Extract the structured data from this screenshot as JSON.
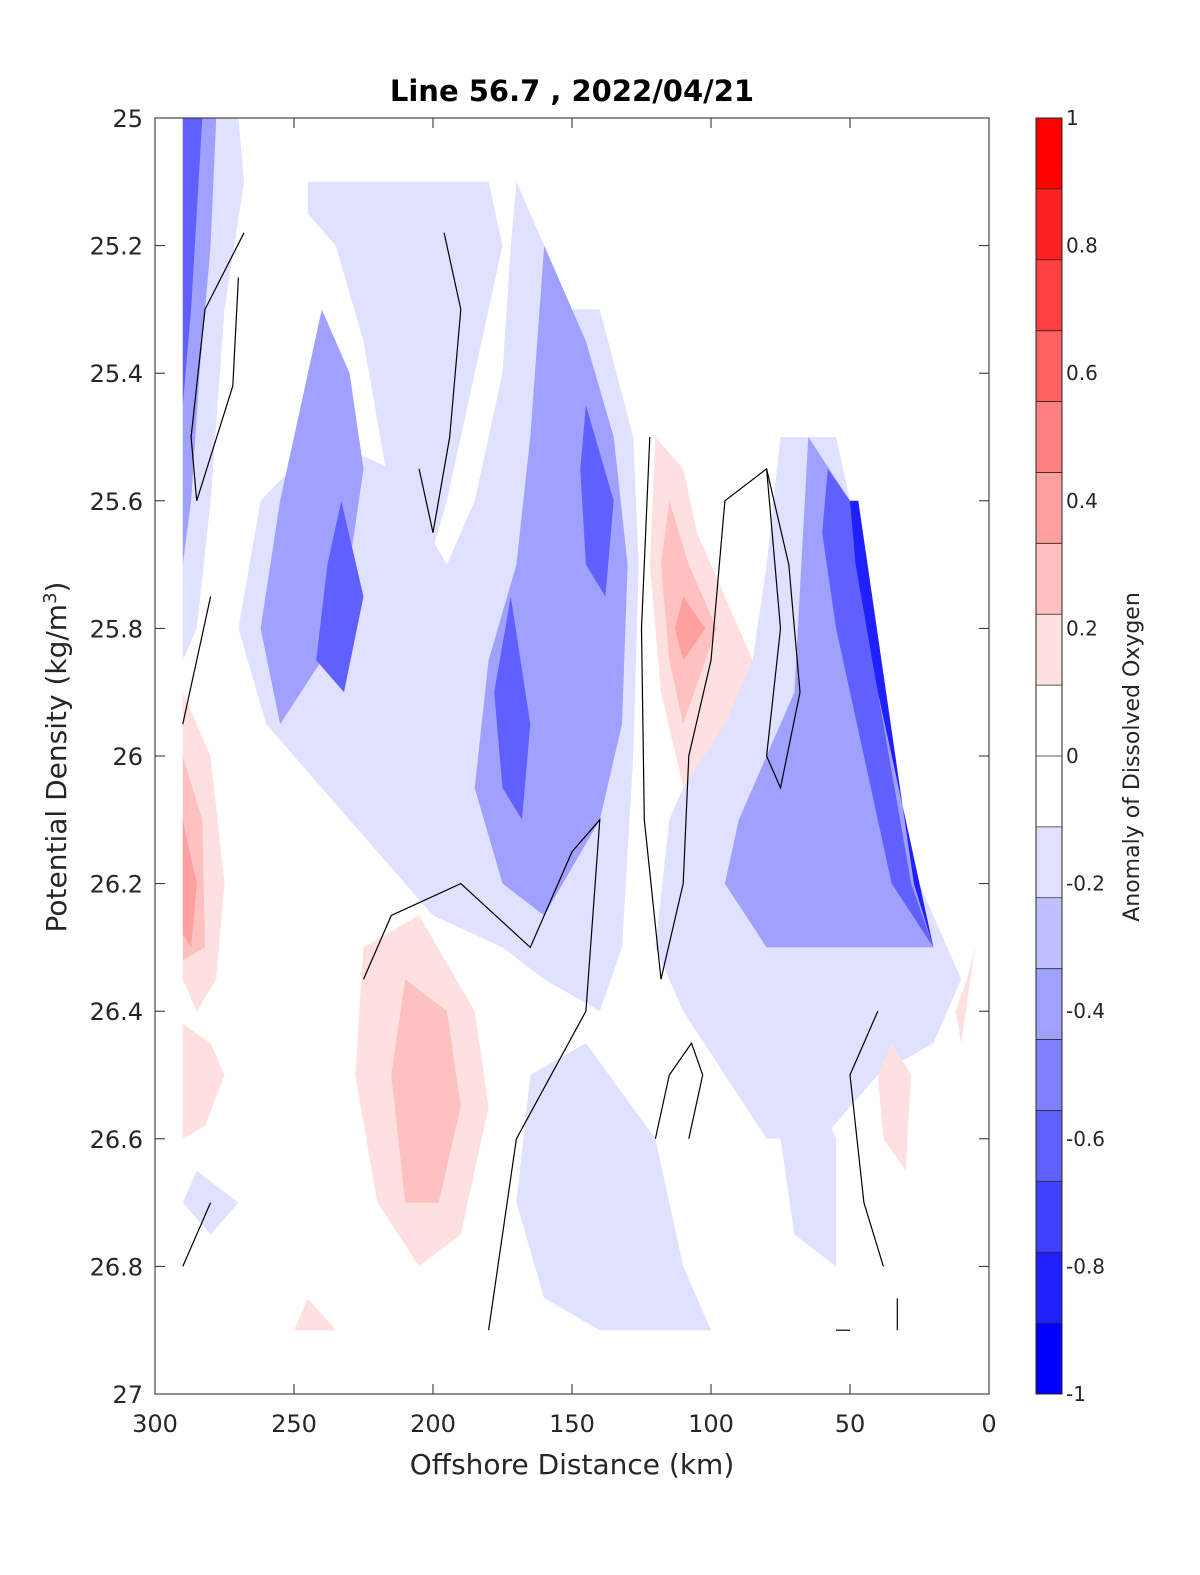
{
  "chart_data": {
    "type": "heatmap",
    "title": "Line 56.7 , 2022/04/21",
    "xlabel": "Offshore Distance (km)",
    "ylabel": "Potential Density (kg/m",
    "ylabel_sup": "3",
    "ylabel_close": ")",
    "xlim": [
      300,
      0
    ],
    "ylim": [
      25,
      27
    ],
    "x_reversed": true,
    "y_reversed": true,
    "xticks": [
      300,
      250,
      200,
      150,
      100,
      50,
      0
    ],
    "yticks": [
      25,
      25.2,
      25.4,
      25.6,
      25.8,
      26,
      26.2,
      26.4,
      26.6,
      26.8,
      27
    ],
    "colorbar": {
      "label": "Anomaly of Dissolved Oxygen",
      "range": [
        -1,
        1
      ],
      "ticks": [
        1,
        0.8,
        0.6,
        0.4,
        0.2,
        0,
        -0.2,
        -0.4,
        -0.6,
        -0.8,
        -1
      ],
      "colors": [
        "#0000ff",
        "#2020ff",
        "#4040ff",
        "#6060ff",
        "#8080ff",
        "#a0a0ff",
        "#c0c0ff",
        "#e0e0ff",
        "#ffffff",
        "#ffffff",
        "#ffe0e0",
        "#ffc0c0",
        "#ffa0a0",
        "#ff8080",
        "#ff6060",
        "#ff4040",
        "#ff2020",
        "#ff0000"
      ]
    },
    "zero_contour": true,
    "regions": [
      {
        "level": -0.2,
        "points": [
          [
            290,
            25
          ],
          [
            270,
            25
          ],
          [
            268,
            25.1
          ],
          [
            275,
            25.3
          ],
          [
            280,
            25.6
          ],
          [
            285,
            25.8
          ],
          [
            290,
            25.85
          ]
        ]
      },
      {
        "level": -0.4,
        "points": [
          [
            290,
            25
          ],
          [
            278,
            25
          ],
          [
            280,
            25.2
          ],
          [
            284,
            25.4
          ],
          [
            287,
            25.6
          ],
          [
            290,
            25.7
          ]
        ]
      },
      {
        "level": -0.6,
        "points": [
          [
            290,
            25
          ],
          [
            283,
            25
          ],
          [
            287,
            25.3
          ],
          [
            290,
            25.45
          ]
        ]
      },
      {
        "level": -0.2,
        "points": [
          [
            245,
            25.1
          ],
          [
            180,
            25.1
          ],
          [
            175,
            25.2
          ],
          [
            185,
            25.4
          ],
          [
            195,
            25.6
          ],
          [
            205,
            25.75
          ],
          [
            215,
            25.6
          ],
          [
            225,
            25.35
          ],
          [
            235,
            25.2
          ],
          [
            245,
            25.15
          ]
        ]
      },
      {
        "level": -0.2,
        "points": [
          [
            170,
            25.1
          ],
          [
            160,
            25.2
          ],
          [
            150,
            25.3
          ],
          [
            140,
            25.3
          ],
          [
            128,
            25.5
          ],
          [
            126,
            25.7
          ],
          [
            128,
            26
          ],
          [
            132,
            26.3
          ],
          [
            140,
            26.4
          ],
          [
            160,
            26.35
          ],
          [
            175,
            26.3
          ],
          [
            200,
            26.25
          ],
          [
            220,
            26.15
          ],
          [
            240,
            26.05
          ],
          [
            260,
            25.95
          ],
          [
            270,
            25.8
          ],
          [
            262,
            25.6
          ],
          [
            240,
            25.5
          ],
          [
            215,
            25.55
          ],
          [
            195,
            25.7
          ],
          [
            185,
            25.6
          ],
          [
            175,
            25.4
          ],
          [
            172,
            25.2
          ]
        ]
      },
      {
        "level": -0.4,
        "points": [
          [
            240,
            25.3
          ],
          [
            230,
            25.4
          ],
          [
            225,
            25.55
          ],
          [
            230,
            25.7
          ],
          [
            240,
            25.85
          ],
          [
            255,
            25.95
          ],
          [
            262,
            25.8
          ],
          [
            255,
            25.6
          ]
        ]
      },
      {
        "level": -0.4,
        "points": [
          [
            160,
            25.2
          ],
          [
            145,
            25.35
          ],
          [
            135,
            25.5
          ],
          [
            130,
            25.7
          ],
          [
            132,
            25.95
          ],
          [
            140,
            26.1
          ],
          [
            160,
            26.25
          ],
          [
            175,
            26.2
          ],
          [
            185,
            26.05
          ],
          [
            180,
            25.85
          ],
          [
            170,
            25.7
          ],
          [
            165,
            25.5
          ]
        ]
      },
      {
        "level": -0.6,
        "points": [
          [
            233,
            25.6
          ],
          [
            225,
            25.75
          ],
          [
            232,
            25.9
          ],
          [
            242,
            25.85
          ],
          [
            238,
            25.7
          ]
        ]
      },
      {
        "level": -0.6,
        "points": [
          [
            145,
            25.45
          ],
          [
            135,
            25.6
          ],
          [
            138,
            25.75
          ],
          [
            145,
            25.7
          ],
          [
            147,
            25.55
          ]
        ]
      },
      {
        "level": -0.6,
        "points": [
          [
            172,
            25.75
          ],
          [
            165,
            25.95
          ],
          [
            168,
            26.1
          ],
          [
            175,
            26.05
          ],
          [
            178,
            25.9
          ]
        ]
      },
      {
        "level": -0.2,
        "points": [
          [
            75,
            25.5
          ],
          [
            55,
            25.5
          ],
          [
            50,
            25.6
          ],
          [
            40,
            25.9
          ],
          [
            25,
            26.2
          ],
          [
            15,
            26.3
          ],
          [
            10,
            26.35
          ],
          [
            20,
            26.45
          ],
          [
            40,
            26.5
          ],
          [
            60,
            26.6
          ],
          [
            80,
            26.6
          ],
          [
            95,
            26.5
          ],
          [
            110,
            26.4
          ],
          [
            120,
            26.3
          ],
          [
            115,
            26.1
          ],
          [
            100,
            25.95
          ],
          [
            85,
            25.85
          ],
          [
            80,
            25.7
          ]
        ]
      },
      {
        "level": -0.4,
        "points": [
          [
            65,
            25.5
          ],
          [
            50,
            25.6
          ],
          [
            40,
            25.9
          ],
          [
            25,
            26.2
          ],
          [
            20,
            26.3
          ],
          [
            40,
            26.3
          ],
          [
            60,
            26.3
          ],
          [
            80,
            26.3
          ],
          [
            95,
            26.2
          ],
          [
            90,
            26.1
          ],
          [
            70,
            25.9
          ]
        ]
      },
      {
        "level": -0.6,
        "points": [
          [
            58,
            25.55
          ],
          [
            50,
            25.6
          ],
          [
            40,
            25.9
          ],
          [
            28,
            26.2
          ],
          [
            20,
            26.3
          ],
          [
            35,
            26.2
          ],
          [
            45,
            26.0
          ],
          [
            55,
            25.8
          ],
          [
            60,
            25.65
          ]
        ]
      },
      {
        "level": -0.8,
        "points": [
          [
            50,
            25.6
          ],
          [
            47,
            25.6
          ],
          [
            37,
            25.9
          ],
          [
            27,
            26.2
          ],
          [
            20,
            26.3
          ],
          [
            30,
            26.1
          ],
          [
            40,
            25.9
          ],
          [
            48,
            25.7
          ]
        ]
      },
      {
        "level": -0.2,
        "points": [
          [
            165,
            26.5
          ],
          [
            145,
            26.45
          ],
          [
            120,
            26.6
          ],
          [
            110,
            26.8
          ],
          [
            100,
            26.9
          ],
          [
            140,
            26.9
          ],
          [
            160,
            26.85
          ],
          [
            170,
            26.7
          ]
        ]
      },
      {
        "level": -0.2,
        "points": [
          [
            285,
            26.65
          ],
          [
            270,
            26.7
          ],
          [
            280,
            26.75
          ],
          [
            290,
            26.7
          ]
        ]
      },
      {
        "level": -0.2,
        "points": [
          [
            65,
            26.5
          ],
          [
            55,
            26.6
          ],
          [
            55,
            26.8
          ],
          [
            70,
            26.75
          ],
          [
            75,
            26.6
          ]
        ]
      },
      {
        "level": 0.2,
        "points": [
          [
            290,
            25.9
          ],
          [
            280,
            26
          ],
          [
            275,
            26.2
          ],
          [
            278,
            26.35
          ],
          [
            285,
            26.4
          ],
          [
            290,
            26.35
          ]
        ]
      },
      {
        "level": 0.3,
        "points": [
          [
            290,
            26
          ],
          [
            283,
            26.1
          ],
          [
            282,
            26.3
          ],
          [
            290,
            26.32
          ]
        ]
      },
      {
        "level": 0.4,
        "points": [
          [
            290,
            26.1
          ],
          [
            285,
            26.2
          ],
          [
            287,
            26.3
          ],
          [
            290,
            26.28
          ]
        ]
      },
      {
        "level": 0.2,
        "points": [
          [
            290,
            26.42
          ],
          [
            280,
            26.45
          ],
          [
            275,
            26.5
          ],
          [
            282,
            26.58
          ],
          [
            290,
            26.6
          ]
        ]
      },
      {
        "level": 0.2,
        "points": [
          [
            120,
            25.5
          ],
          [
            110,
            25.55
          ],
          [
            105,
            25.65
          ],
          [
            95,
            25.75
          ],
          [
            85,
            25.85
          ],
          [
            95,
            25.95
          ],
          [
            110,
            26.05
          ],
          [
            118,
            25.9
          ],
          [
            122,
            25.7
          ]
        ]
      },
      {
        "level": 0.3,
        "points": [
          [
            115,
            25.6
          ],
          [
            108,
            25.7
          ],
          [
            98,
            25.8
          ],
          [
            110,
            25.95
          ],
          [
            115,
            25.85
          ],
          [
            118,
            25.7
          ]
        ]
      },
      {
        "level": 0.4,
        "points": [
          [
            110,
            25.75
          ],
          [
            102,
            25.8
          ],
          [
            110,
            25.85
          ],
          [
            113,
            25.8
          ]
        ]
      },
      {
        "level": 0.2,
        "points": [
          [
            225,
            26.3
          ],
          [
            205,
            26.25
          ],
          [
            185,
            26.4
          ],
          [
            180,
            26.55
          ],
          [
            190,
            26.75
          ],
          [
            205,
            26.8
          ],
          [
            220,
            26.7
          ],
          [
            228,
            26.5
          ]
        ]
      },
      {
        "level": 0.3,
        "points": [
          [
            210,
            26.35
          ],
          [
            195,
            26.4
          ],
          [
            190,
            26.55
          ],
          [
            198,
            26.7
          ],
          [
            210,
            26.7
          ],
          [
            215,
            26.5
          ]
        ]
      },
      {
        "level": 0.2,
        "points": [
          [
            35,
            26.45
          ],
          [
            28,
            26.5
          ],
          [
            30,
            26.65
          ],
          [
            38,
            26.6
          ],
          [
            40,
            26.5
          ]
        ]
      },
      {
        "level": 0.2,
        "points": [
          [
            245,
            26.85
          ],
          [
            235,
            26.9
          ],
          [
            250,
            26.9
          ]
        ]
      },
      {
        "level": 0.2,
        "points": [
          [
            5,
            26.3
          ],
          [
            10,
            26.45
          ],
          [
            12,
            26.4
          ],
          [
            8,
            26.35
          ]
        ]
      }
    ],
    "contours": [
      [
        [
          268,
          25.18
        ],
        [
          282,
          25.3
        ],
        [
          287,
          25.5
        ],
        [
          285,
          25.6
        ],
        [
          272,
          25.42
        ],
        [
          270,
          25.25
        ]
      ],
      [
        [
          196,
          25.18
        ],
        [
          190,
          25.3
        ],
        [
          194,
          25.5
        ],
        [
          200,
          25.65
        ],
        [
          205,
          25.55
        ]
      ],
      [
        [
          280,
          25.75
        ],
        [
          290,
          25.95
        ]
      ],
      [
        [
          280,
          26.7
        ],
        [
          290,
          26.8
        ]
      ],
      [
        [
          225,
          26.35
        ],
        [
          215,
          26.25
        ],
        [
          190,
          26.2
        ],
        [
          165,
          26.3
        ],
        [
          150,
          26.15
        ],
        [
          140,
          26.1
        ],
        [
          145,
          26.4
        ],
        [
          170,
          26.6
        ],
        [
          180,
          26.9
        ]
      ],
      [
        [
          122,
          25.5
        ],
        [
          125,
          25.8
        ],
        [
          124,
          26.1
        ],
        [
          118,
          26.35
        ],
        [
          110,
          26.2
        ],
        [
          108,
          26.0
        ],
        [
          100,
          25.85
        ],
        [
          95,
          25.6
        ],
        [
          80,
          25.55
        ],
        [
          75,
          25.8
        ],
        [
          80,
          26.0
        ],
        [
          75,
          26.05
        ],
        [
          68,
          25.9
        ],
        [
          72,
          25.7
        ],
        [
          80,
          25.55
        ]
      ],
      [
        [
          120,
          26.6
        ],
        [
          115,
          26.5
        ],
        [
          107,
          26.45
        ],
        [
          103,
          26.5
        ],
        [
          108,
          26.6
        ]
      ],
      [
        [
          40,
          26.4
        ],
        [
          50,
          26.5
        ],
        [
          45,
          26.7
        ],
        [
          38,
          26.8
        ]
      ],
      [
        [
          33,
          26.9
        ],
        [
          33,
          26.85
        ]
      ],
      [
        [
          55,
          26.9
        ],
        [
          50,
          26.9
        ]
      ]
    ]
  }
}
